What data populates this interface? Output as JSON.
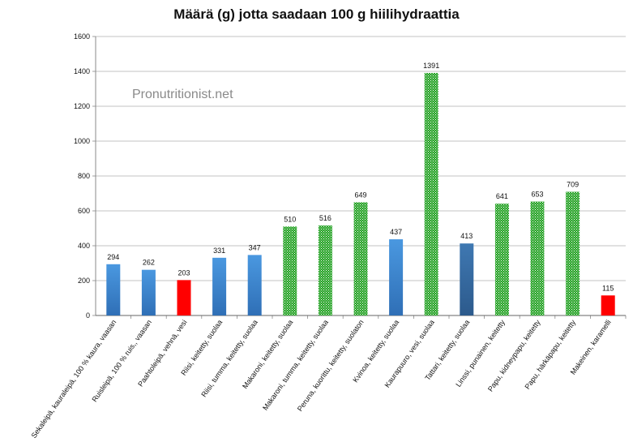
{
  "chart_data": {
    "type": "bar",
    "title": "Määrä (g) jotta saadaan 100 g hiilihydraattia",
    "watermark": "Pronutritionist.net",
    "ylim": [
      0,
      1600
    ],
    "yticks": [
      0,
      200,
      400,
      600,
      800,
      1000,
      1200,
      1400,
      1600
    ],
    "grid": true,
    "legend": "none",
    "categories": [
      "Sekaleipä, kauraleipä, 100 % kaura, vaasan",
      "Ruisleipä, 100 % ruis,, vaasan",
      "Paahtoleipä, vehnä, vesi",
      "Riisi, keitetty, suolaa",
      "Riisi, tumma, keitetty, suolaa",
      "Makaroni, keitetty, suolaa",
      "Makaroni, tumma, keitetty, suolaa",
      "Peruna, kuorittu, keitetty, suolaton",
      "Kvinoa, keitetty, suolaa",
      "Kaurapuuro, vesi, suolaa",
      "Tattari, keitetty, suolaa",
      "Linssi, punainen, keitetty",
      "Papu, kidneypapu, keitetty",
      "Papu, härkäpapu, keitetty",
      "Makeinen, karamelli"
    ],
    "values": [
      294,
      262,
      203,
      331,
      347,
      510,
      516,
      649,
      437,
      1391,
      413,
      641,
      653,
      709,
      115
    ],
    "bar_styles": [
      "blue",
      "blue",
      "red",
      "blue",
      "blue",
      "green",
      "green",
      "green",
      "blue",
      "green",
      "darkblue",
      "green",
      "green",
      "green",
      "red"
    ],
    "colors": {
      "blue": "#3f85cf",
      "darkblue": "#3a6fa6",
      "red": "#ff0000",
      "green": "#22a122",
      "axis": "#888888"
    }
  }
}
